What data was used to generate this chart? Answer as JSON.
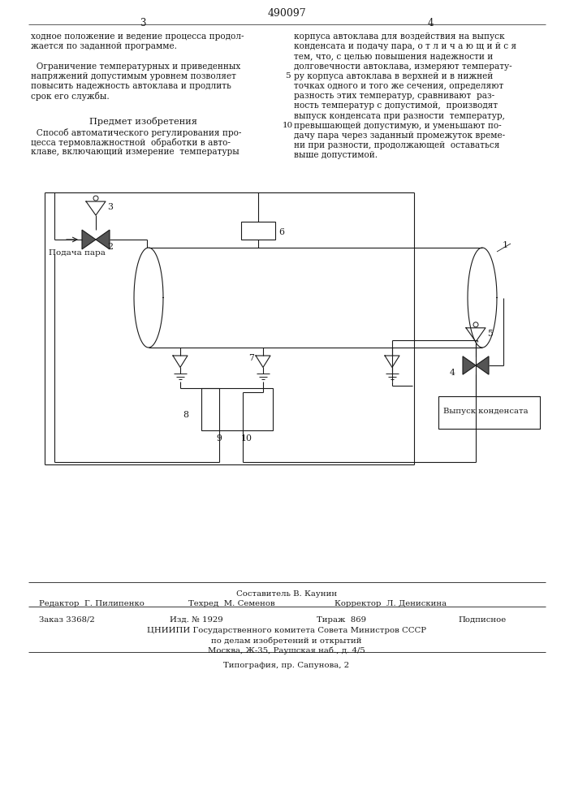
{
  "patent_number": "490097",
  "page_left": "3",
  "page_right": "4",
  "left_col": [
    "ходное положение и ведение процесса продол-",
    "жается по заданной программе.",
    "",
    "  Ограничение температурных и приведенных",
    "напряжений допустимым уровнем позволяет",
    "повысить надежность автоклава и продлить",
    "срок его службы."
  ],
  "predmet_title": "Предмет изобретения",
  "predmet_lines": [
    "  Способ автоматического регулирования про-",
    "цесса термовлажностной  обработки в авто-",
    "клаве, включающий измерение  температуры"
  ],
  "right_col": [
    "корпуса автоклава для воздействия на выпуск",
    "конденсата и подачу пара, о т л и ч а ю щ и й с я",
    "тем, что, с целью повышения надежности и",
    "долговечности автоклава, измеряют температу-",
    "ру корпуса автоклава в верхней и в нижней",
    "точках одного и того же сечения, определяют",
    "разность этих температур, сравнивают  раз-",
    "ность температур с допустимой,  производят",
    "выпуск конденсата при разности  температур,",
    "превышающей допустимую, и уменьшают по-",
    "дачу пара через заданный промежуток време-",
    "ни при разности, продолжающей  оставаться",
    "выше допустимой."
  ],
  "line_num_5": "5",
  "line_num_10": "10",
  "composer": "Составитель В. Каунин",
  "editor": "Редактор  Г. Пилипенко",
  "tech": "Техред  М. Семенов",
  "corrector": "Корректор  Л. Денискина",
  "order": "Заказ 3368/2",
  "izd": "Изд. № 1929",
  "tirazh": "Тираж  869",
  "podp": "Подписное",
  "tsniipi": "ЦНИИПИ Государственного комитета Совета Министров СССР",
  "po_delam": "по делам изобретений и открытий",
  "moscow": "Москва, Ж-35, Раушская наб., д. 4/5",
  "tipografia": "Типография, пр. Сапунова, 2",
  "bg": "#ffffff",
  "fg": "#1a1a1a"
}
